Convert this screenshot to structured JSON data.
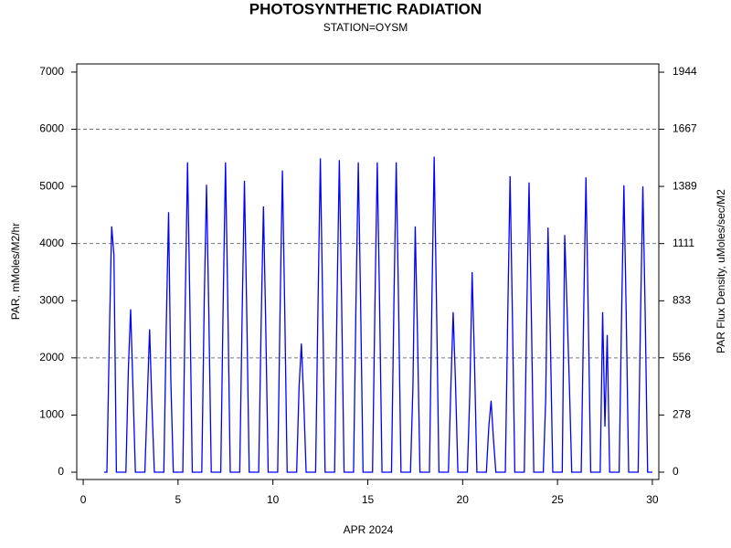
{
  "chart_data": {
    "type": "line",
    "title": "PHOTOSYNTHETIC RADIATION",
    "subtitle": "STATION=OYSM",
    "x_label": "APR 2024",
    "y_label": "PAR, mMoles/M2/hr",
    "y2_label": "PAR Flux Density, uMoles/sec/M2",
    "xlim": [
      -0.34,
      30.34
    ],
    "xticks": [
      0,
      5,
      10,
      15,
      20,
      25,
      30
    ],
    "ylim": [
      -128,
      7143
    ],
    "yticks": [
      0,
      1000,
      2000,
      3000,
      4000,
      5000,
      6000,
      7000
    ],
    "y2lim": [
      -35.6,
      1984.2
    ],
    "y2ticks": [
      0,
      278,
      556,
      833,
      1111,
      1389,
      1667,
      1944
    ],
    "reference_lines": [
      2000,
      4000,
      6000
    ],
    "x": [
      1.1,
      1.25,
      1.38,
      1.5,
      1.62,
      1.75,
      2.25,
      2.38,
      2.5,
      2.62,
      2.75,
      3.25,
      3.38,
      3.5,
      3.62,
      3.75,
      4.25,
      4.38,
      4.5,
      4.62,
      4.75,
      5.25,
      5.38,
      5.5,
      5.62,
      5.75,
      6.25,
      6.38,
      6.5,
      6.62,
      6.75,
      7.25,
      7.38,
      7.5,
      7.62,
      7.75,
      8.25,
      8.38,
      8.5,
      8.62,
      8.75,
      9.25,
      9.38,
      9.5,
      9.62,
      9.75,
      10.25,
      10.38,
      10.5,
      10.62,
      10.75,
      11.25,
      11.38,
      11.5,
      11.62,
      11.75,
      12.25,
      12.38,
      12.5,
      12.62,
      12.75,
      13.25,
      13.38,
      13.5,
      13.62,
      13.75,
      14.25,
      14.38,
      14.5,
      14.62,
      14.75,
      15.25,
      15.38,
      15.5,
      15.62,
      15.75,
      16.25,
      16.38,
      16.5,
      16.62,
      16.75,
      17.25,
      17.38,
      17.5,
      17.62,
      17.75,
      18.25,
      18.38,
      18.5,
      18.62,
      18.75,
      19.25,
      19.38,
      19.5,
      19.62,
      19.75,
      20.25,
      20.38,
      20.5,
      20.62,
      20.75,
      21.25,
      21.38,
      21.5,
      21.62,
      21.75,
      22.25,
      22.38,
      22.5,
      22.62,
      22.75,
      23.25,
      23.38,
      23.5,
      23.62,
      23.75,
      24.25,
      24.38,
      24.5,
      24.62,
      24.75,
      25.25,
      25.38,
      25.5,
      25.62,
      25.75,
      26.25,
      26.38,
      26.5,
      26.62,
      26.75,
      27.25,
      27.38,
      27.5,
      27.62,
      27.75,
      28.25,
      28.38,
      28.5,
      28.62,
      28.75,
      29.25,
      29.38,
      29.5,
      29.62,
      29.75,
      30.0
    ],
    "series": [
      {
        "color": "#0000ff",
        "values": [
          0,
          0,
          2400,
          4300,
          3800,
          0,
          0,
          1800,
          2850,
          1500,
          0,
          0,
          1300,
          2500,
          1200,
          0,
          0,
          2600,
          4550,
          1600,
          0,
          0,
          3000,
          5420,
          3000,
          0,
          0,
          3000,
          5030,
          2800,
          0,
          0,
          3000,
          5420,
          3000,
          0,
          0,
          2800,
          5100,
          2800,
          0,
          0,
          2600,
          4650,
          2600,
          0,
          0,
          2900,
          5280,
          2900,
          0,
          0,
          1500,
          2250,
          1300,
          0,
          0,
          3000,
          5490,
          3000,
          0,
          0,
          3000,
          5460,
          3000,
          0,
          0,
          3000,
          5420,
          3000,
          0,
          0,
          3000,
          5420,
          3000,
          0,
          0,
          3000,
          5420,
          3000,
          0,
          0,
          1500,
          4300,
          2400,
          0,
          0,
          3000,
          5520,
          3000,
          0,
          0,
          1500,
          2800,
          1600,
          0,
          0,
          1400,
          3500,
          2000,
          0,
          0,
          800,
          1250,
          600,
          0,
          0,
          2800,
          5180,
          2800,
          0,
          0,
          2800,
          5070,
          2800,
          0,
          0,
          1300,
          4280,
          2400,
          0,
          0,
          4150,
          2900,
          1600,
          0,
          0,
          2800,
          5160,
          2800,
          0,
          0,
          2800,
          800,
          2400,
          0,
          0,
          2800,
          5020,
          2800,
          0,
          0,
          2800,
          5000,
          2800,
          0,
          0
        ]
      }
    ]
  }
}
